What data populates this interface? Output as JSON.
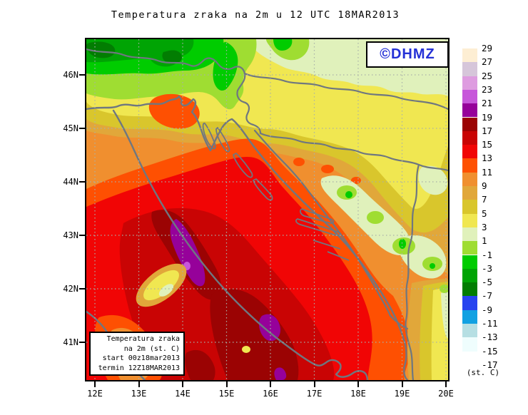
{
  "title": "Temperatura zraka na 2m u 12 UTC 18MAR2013",
  "badge": {
    "text": "©DHMZ",
    "color": "#2431d6"
  },
  "info_box": {
    "line1": "Temperatura zraka",
    "line2": "na 2m (st. C)",
    "line3": "start 00z18mar2013",
    "line4": "termin 12Z18MAR2013"
  },
  "legend": {
    "unit": "(st. C)",
    "labels": [
      "29",
      "27",
      "25",
      "23",
      "21",
      "19",
      "17",
      "15",
      "13",
      "11",
      "9",
      "7",
      "5",
      "3",
      "1",
      "-1",
      "-3",
      "-5",
      "-7",
      "-9",
      "-11",
      "-13",
      "-15",
      "-17"
    ],
    "colors": [
      "#fdeed3",
      "#d6c6da",
      "#de9ce0",
      "#c757da",
      "#96019a",
      "#9b0303",
      "#c90404",
      "#f10505",
      "#fe5002",
      "#f08f2f",
      "#e1a73a",
      "#d9c62c",
      "#f0e751",
      "#e0f1bb",
      "#9fdd32",
      "#00cc00",
      "#00a404",
      "#027d02",
      "#2744ef",
      "#11a1e2",
      "#b6dfe3",
      "#effdfd",
      "#ffffff"
    ]
  },
  "axes": {
    "lat": [
      "46N",
      "45N",
      "44N",
      "43N",
      "42N",
      "41N"
    ],
    "lon": [
      "12E",
      "13E",
      "14E",
      "15E",
      "16E",
      "17E",
      "18E",
      "19E",
      "20E"
    ]
  },
  "map": {
    "coast_color": "#6f7780",
    "grid_color": "#a9b1a9"
  }
}
